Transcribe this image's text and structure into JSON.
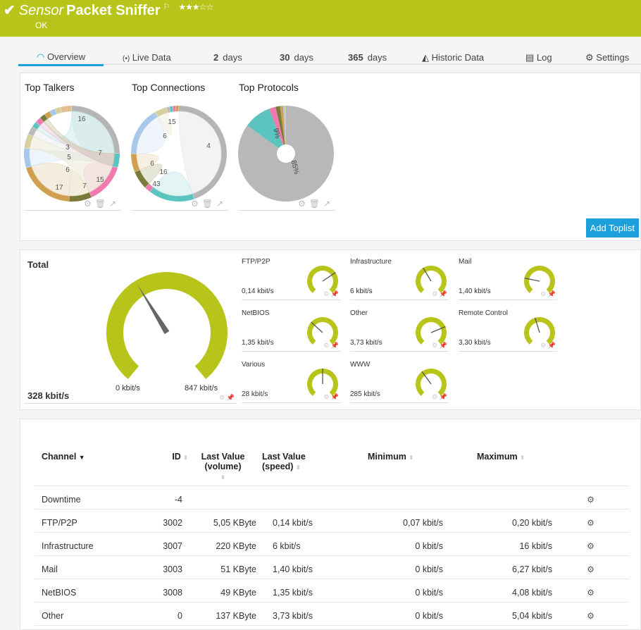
{
  "header": {
    "check_icon": "check-icon",
    "prefix": "Sensor",
    "name": "Packet Sniffer",
    "flag_icon": "flag-icon",
    "stars": "★★★☆☆",
    "priority_stars": 3,
    "status": "OK",
    "color": "#b8c41a"
  },
  "tabs": [
    {
      "label": "Overview",
      "icon": "gauge-icon"
    },
    {
      "label": "Live Data",
      "icon": "broadcast-icon"
    },
    {
      "num": "2",
      "label": "days"
    },
    {
      "num": "30",
      "label": "days"
    },
    {
      "num": "365",
      "label": "days"
    },
    {
      "label": "Historic Data",
      "icon": "area-chart-icon"
    },
    {
      "label": "Log",
      "icon": "list-icon"
    },
    {
      "label": "Settings",
      "icon": "gear-icon"
    }
  ],
  "toplists": {
    "charts": [
      {
        "title": "Top Talkers",
        "labels": [
          "16",
          "7",
          "3",
          "5",
          "6",
          "17",
          "7",
          "15"
        ]
      },
      {
        "title": "Top Connections",
        "labels": [
          "4",
          "16",
          "43",
          "6",
          "6",
          "15"
        ]
      },
      {
        "title": "Top Protocols",
        "labels": [
          "9%",
          "85%"
        ]
      }
    ],
    "add_button": "Add Toplist"
  },
  "gauges": {
    "total": {
      "label": "Total",
      "value": "328 kbit/s",
      "min": "0 kbit/s",
      "max": "847 kbit/s",
      "level": 0.387
    },
    "channels": [
      {
        "label": "FTP/P2P",
        "value": "0,14 kbit/s",
        "level": 0.7
      },
      {
        "label": "Infrastructure",
        "value": "6 kbit/s",
        "level": 0.39
      },
      {
        "label": "Mail",
        "value": "1,40 kbit/s",
        "level": 0.22
      },
      {
        "label": "NetBIOS",
        "value": "1,35 kbit/s",
        "level": 0.33
      },
      {
        "label": "Other",
        "value": "3,73 kbit/s",
        "level": 0.74
      },
      {
        "label": "Remote Control",
        "value": "3,30 kbit/s",
        "level": 0.44
      },
      {
        "label": "Various",
        "value": "28 kbit/s",
        "level": 0.5
      },
      {
        "label": "WWW",
        "value": "285 kbit/s",
        "level": 0.37
      }
    ]
  },
  "table": {
    "headers": {
      "channel": "Channel",
      "id": "ID",
      "lv_volume_1": "Last Value",
      "lv_volume_2": "(volume)",
      "lv_speed_1": "Last Value",
      "lv_speed_2": "(speed)",
      "minimum": "Minimum",
      "maximum": "Maximum"
    },
    "rows": [
      {
        "channel": "Downtime",
        "id": "-4",
        "volume": "",
        "speed": "",
        "min": "",
        "max": ""
      },
      {
        "channel": "FTP/P2P",
        "id": "3002",
        "volume": "5,05 KByte",
        "speed": "0,14 kbit/s",
        "min": "0,07 kbit/s",
        "max": "0,20 kbit/s"
      },
      {
        "channel": "Infrastructure",
        "id": "3007",
        "volume": "220 KByte",
        "speed": "6 kbit/s",
        "min": "0 kbit/s",
        "max": "16 kbit/s"
      },
      {
        "channel": "Mail",
        "id": "3003",
        "volume": "51 KByte",
        "speed": "1,40 kbit/s",
        "min": "0 kbit/s",
        "max": "6,27 kbit/s"
      },
      {
        "channel": "NetBIOS",
        "id": "3008",
        "volume": "49 KByte",
        "speed": "1,35 kbit/s",
        "min": "0 kbit/s",
        "max": "4,08 kbit/s"
      },
      {
        "channel": "Other",
        "id": "0",
        "volume": "137 KByte",
        "speed": "3,73 kbit/s",
        "min": "0 kbit/s",
        "max": "5,04 kbit/s"
      }
    ]
  }
}
